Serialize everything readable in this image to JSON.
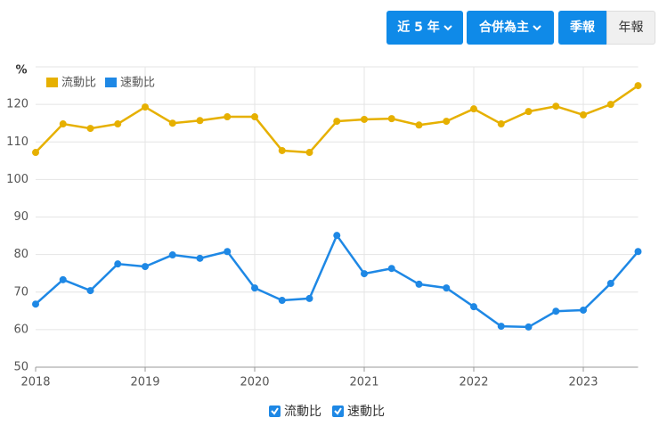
{
  "controls": {
    "range": "近 5 年",
    "basis": "合併為主",
    "quarterly": "季報",
    "annual": "年報"
  },
  "chart_data": {
    "type": "line",
    "y_label": "%",
    "categories": [
      "2018",
      null,
      null,
      null,
      "2019",
      null,
      null,
      null,
      "2020",
      null,
      null,
      null,
      "2021",
      null,
      null,
      null,
      "2022",
      null,
      null,
      null,
      "2023",
      null,
      null
    ],
    "series": [
      {
        "name": "流動比",
        "color": "#e6b000",
        "values": [
          107.2,
          114.8,
          113.6,
          114.8,
          119.3,
          115,
          115.7,
          116.7,
          116.7,
          107.7,
          107.2,
          115.5,
          116,
          116.2,
          114.5,
          115.5,
          118.8,
          114.8,
          118.1,
          119.5,
          117.2,
          120,
          125
        ]
      },
      {
        "name": "速動比",
        "color": "#1e88e5",
        "values": [
          66.8,
          73.3,
          70.4,
          77.5,
          76.8,
          79.9,
          79,
          80.8,
          71.1,
          67.8,
          68.3,
          85.1,
          74.9,
          76.3,
          72.1,
          71.1,
          66.1,
          60.9,
          60.7,
          64.9,
          65.2,
          72.3,
          80.8
        ]
      }
    ],
    "ylim": [
      50,
      130
    ],
    "yticks": [
      50,
      60,
      70,
      80,
      90,
      100,
      110,
      120
    ],
    "grid": true
  }
}
